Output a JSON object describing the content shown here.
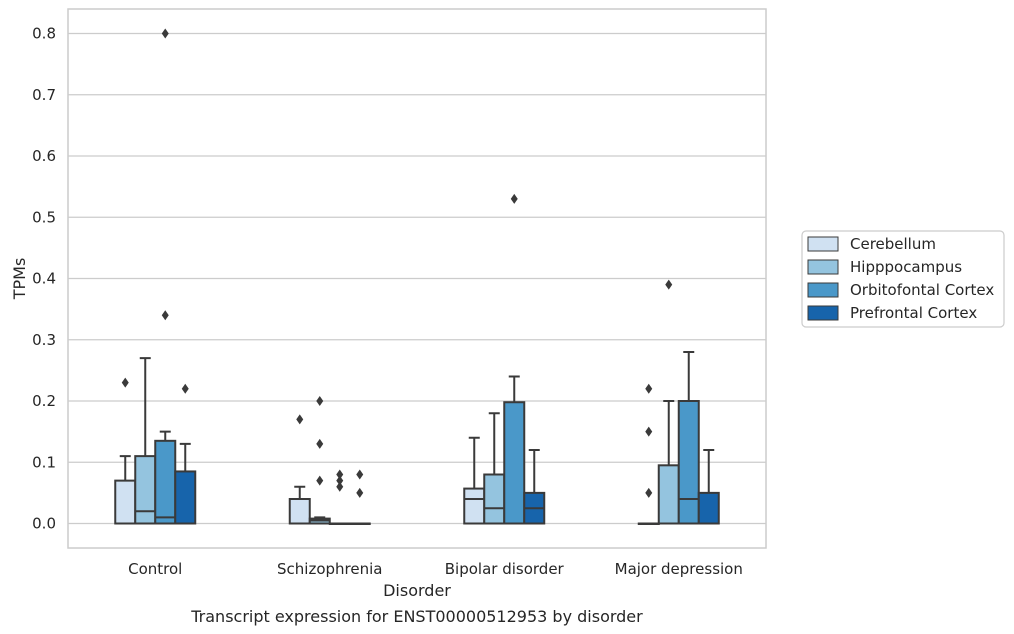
{
  "chart_data": {
    "type": "box",
    "caption": "Transcript expression for ENST00000512953 by disorder",
    "xlabel": "Disorder",
    "ylabel": "TPMs",
    "ylim": [
      -0.04,
      0.84
    ],
    "yticks": [
      "0.0",
      "0.1",
      "0.2",
      "0.3",
      "0.4",
      "0.5",
      "0.6",
      "0.7",
      "0.8"
    ],
    "grid": true,
    "legend_position": "right",
    "categories": [
      "Control",
      "Schizophrenia",
      "Bipolar disorder",
      "Major depression"
    ],
    "series": [
      {
        "name": "Cerebellum",
        "color": "#d0e1f2"
      },
      {
        "name": "Hipppocampus",
        "color": "#94c4df"
      },
      {
        "name": "Orbitofontal Cortex",
        "color": "#4a98c9"
      },
      {
        "name": "Prefrontal Cortex",
        "color": "#1764ab"
      }
    ],
    "boxes": [
      [
        {
          "whislo": 0,
          "q1": 0,
          "med": 0,
          "q3": 0.07,
          "whishi": 0.11,
          "fliers": [
            0.23
          ]
        },
        {
          "whislo": 0,
          "q1": 0,
          "med": 0.02,
          "q3": 0.11,
          "whishi": 0.27,
          "fliers": []
        },
        {
          "whislo": 0,
          "q1": 0,
          "med": 0.01,
          "q3": 0.135,
          "whishi": 0.15,
          "fliers": [
            0.34,
            0.8
          ]
        },
        {
          "whislo": 0,
          "q1": 0,
          "med": 0,
          "q3": 0.085,
          "whishi": 0.13,
          "fliers": [
            0.22
          ]
        }
      ],
      [
        {
          "whislo": 0,
          "q1": 0,
          "med": 0,
          "q3": 0.04,
          "whishi": 0.06,
          "fliers": [
            0.17
          ]
        },
        {
          "whislo": 0,
          "q1": 0,
          "med": 0.005,
          "q3": 0.008,
          "whishi": 0.01,
          "fliers": [
            0.07,
            0.13,
            0.2
          ]
        },
        {
          "whislo": 0,
          "q1": 0,
          "med": 0,
          "q3": 0,
          "whishi": 0,
          "fliers": [
            0.06,
            0.07,
            0.08
          ]
        },
        {
          "whislo": 0,
          "q1": 0,
          "med": 0,
          "q3": 0,
          "whishi": 0,
          "fliers": [
            0.05,
            0.08
          ]
        }
      ],
      [
        {
          "whislo": 0,
          "q1": 0,
          "med": 0.04,
          "q3": 0.057,
          "whishi": 0.14,
          "fliers": []
        },
        {
          "whislo": 0,
          "q1": 0,
          "med": 0.025,
          "q3": 0.08,
          "whishi": 0.18,
          "fliers": []
        },
        {
          "whislo": 0,
          "q1": 0,
          "med": 0,
          "q3": 0.198,
          "whishi": 0.24,
          "fliers": [
            0.53
          ]
        },
        {
          "whislo": 0,
          "q1": 0,
          "med": 0.025,
          "q3": 0.05,
          "whishi": 0.12,
          "fliers": []
        }
      ],
      [
        {
          "whislo": 0,
          "q1": 0,
          "med": 0,
          "q3": 0,
          "whishi": 0,
          "fliers": [
            0.05,
            0.15,
            0.22
          ]
        },
        {
          "whislo": 0,
          "q1": 0,
          "med": 0,
          "q3": 0.095,
          "whishi": 0.2,
          "fliers": [
            0.39
          ]
        },
        {
          "whislo": 0,
          "q1": 0,
          "med": 0.04,
          "q3": 0.2,
          "whishi": 0.28,
          "fliers": []
        },
        {
          "whislo": 0,
          "q1": 0,
          "med": 0,
          "q3": 0.05,
          "whishi": 0.12,
          "fliers": []
        }
      ]
    ]
  }
}
